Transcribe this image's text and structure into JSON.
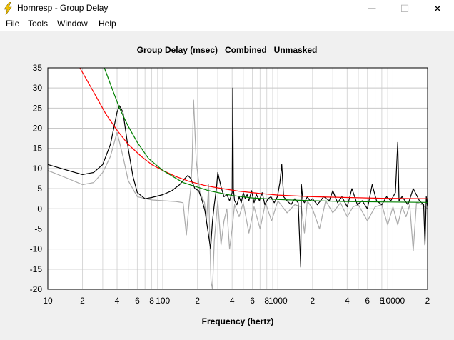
{
  "window": {
    "title": "Hornresp - Group Delay",
    "minimize_glyph": "—",
    "maximize_glyph": "☐",
    "close_glyph": "✕"
  },
  "menu": {
    "items": [
      {
        "label": "File"
      },
      {
        "label": "Tools"
      },
      {
        "label": "Window"
      },
      {
        "label": "Help"
      }
    ]
  },
  "chart_data": {
    "type": "line",
    "title": "Group Delay (msec)   Combined   Unmasked",
    "xlabel": "Frequency (hertz)",
    "ylabel": "",
    "xscale": "log",
    "xlim": [
      10,
      20000
    ],
    "ylim": [
      -20,
      35
    ],
    "grid": true,
    "y_ticks": [
      35,
      30,
      25,
      20,
      15,
      10,
      5,
      0,
      -5,
      -10,
      -15,
      -20
    ],
    "x_ticks": [
      {
        "value": 10,
        "label": "10"
      },
      {
        "value": 20,
        "label": "2"
      },
      {
        "value": 40,
        "label": "4"
      },
      {
        "value": 60,
        "label": "6"
      },
      {
        "value": 80,
        "label": "8"
      },
      {
        "value": 100,
        "label": "100"
      },
      {
        "value": 200,
        "label": "2"
      },
      {
        "value": 400,
        "label": "4"
      },
      {
        "value": 600,
        "label": "6"
      },
      {
        "value": 800,
        "label": "8"
      },
      {
        "value": 1000,
        "label": "1000"
      },
      {
        "value": 2000,
        "label": "2"
      },
      {
        "value": 4000,
        "label": "4"
      },
      {
        "value": 6000,
        "label": "6"
      },
      {
        "value": 8000,
        "label": "8"
      },
      {
        "value": 10000,
        "label": "10000"
      },
      {
        "value": 20000,
        "label": "2"
      }
    ],
    "series": [
      {
        "color": "#008000",
        "x": [
          31,
          36,
          42,
          50,
          60,
          75,
          100,
          150,
          250,
          400,
          600,
          1000,
          2000,
          4000,
          8000,
          20000
        ],
        "y": [
          35,
          30,
          25,
          20.5,
          16.5,
          12.5,
          9.5,
          6.5,
          4.5,
          3.3,
          2.7,
          2.3,
          2.0,
          1.8,
          1.7,
          1.6
        ]
      },
      {
        "color": "#ff0000",
        "x": [
          19,
          25,
          32,
          40,
          50,
          65,
          80,
          100,
          130,
          170,
          230,
          300,
          450,
          700,
          1000,
          2000,
          4000,
          8000,
          20000
        ],
        "y": [
          35,
          29,
          23.5,
          19.5,
          16,
          13,
          11,
          9.5,
          8,
          6.8,
          5.8,
          5.2,
          4.4,
          3.8,
          3.4,
          3.0,
          2.8,
          2.6,
          2.5
        ]
      },
      {
        "color": "#000000",
        "x": [
          10,
          15,
          20,
          25,
          30,
          35,
          40,
          42,
          45,
          50,
          55,
          60,
          70,
          80,
          100,
          120,
          140,
          155,
          165,
          175,
          190,
          205,
          220,
          232,
          245,
          260,
          270,
          280,
          292,
          300,
          320,
          340,
          360,
          380,
          400,
          405,
          410,
          420,
          440,
          460,
          480,
          500,
          520,
          540,
          560,
          590,
          620,
          650,
          690,
          730,
          770,
          820,
          870,
          930,
          990,
          1040,
          1080,
          1120,
          1200,
          1300,
          1400,
          1500,
          1580,
          1600,
          1650,
          1700,
          1800,
          1900,
          2000,
          2200,
          2500,
          2800,
          3000,
          3300,
          3600,
          4000,
          4400,
          4900,
          5400,
          6000,
          6600,
          7200,
          8000,
          8800,
          9600,
          10500,
          11000,
          11300,
          12000,
          13500,
          15000,
          17000,
          18500,
          19000,
          19500,
          20000
        ],
        "y": [
          11,
          9.5,
          8.5,
          9,
          11,
          16,
          24,
          25.6,
          24,
          15,
          8,
          4,
          2.5,
          2.8,
          3.5,
          4.5,
          6,
          7.5,
          8.3,
          7.5,
          5,
          4.5,
          2,
          -0.5,
          -5,
          -10,
          -3,
          1,
          5,
          9,
          5.5,
          3,
          3.5,
          2,
          4,
          30,
          5,
          2,
          1,
          3,
          1.5,
          4,
          2.5,
          3.5,
          2,
          4.5,
          1.5,
          3.5,
          2,
          4,
          1,
          2.5,
          3,
          1.5,
          3,
          6.5,
          11,
          3,
          2,
          1,
          2.5,
          1.5,
          -14.5,
          6,
          2,
          1.5,
          3,
          2,
          2.5,
          1,
          3,
          2,
          4.5,
          1.5,
          3,
          0.5,
          5,
          1,
          2,
          0,
          6,
          2,
          1,
          3,
          2,
          4,
          16.5,
          2,
          3,
          1,
          5,
          2,
          1,
          -9,
          3,
          0.5
        ]
      },
      {
        "color": "#aaaaaa",
        "x": [
          10,
          15,
          20,
          25,
          30,
          35,
          40,
          45,
          50,
          60,
          80,
          100,
          130,
          150,
          160,
          170,
          175,
          180,
          185,
          195,
          210,
          230,
          240,
          250,
          255,
          262,
          270,
          280,
          300,
          320,
          340,
          360,
          380,
          400,
          420,
          460,
          500,
          560,
          620,
          700,
          780,
          880,
          1000,
          1200,
          1400,
          1600,
          1700,
          1800,
          2000,
          2300,
          2600,
          3000,
          3500,
          4000,
          4500,
          5000,
          6000,
          7000,
          8000,
          9000,
          10000,
          11000,
          12000,
          13000,
          14000,
          15000,
          16000,
          18000,
          20000
        ],
        "y": [
          9.5,
          7.5,
          6,
          6.5,
          9,
          13,
          19,
          13,
          7,
          3,
          2.2,
          2,
          1.8,
          1.5,
          -6.5,
          2,
          5,
          12,
          27,
          12,
          4,
          1.5,
          -3,
          6,
          -6,
          -18,
          -20,
          -8,
          2,
          -9,
          -3,
          0,
          -10,
          -5,
          1,
          -2,
          1.5,
          -6,
          0.5,
          -5,
          1.5,
          -3,
          2,
          -1,
          1,
          0.5,
          -6,
          2,
          0,
          -5,
          2,
          -1,
          1.5,
          -2,
          0.5,
          1,
          -3,
          0.5,
          1,
          -4,
          0.5,
          -4,
          0.5,
          -2,
          1,
          -10.5,
          1.5,
          1,
          0
        ]
      }
    ]
  }
}
